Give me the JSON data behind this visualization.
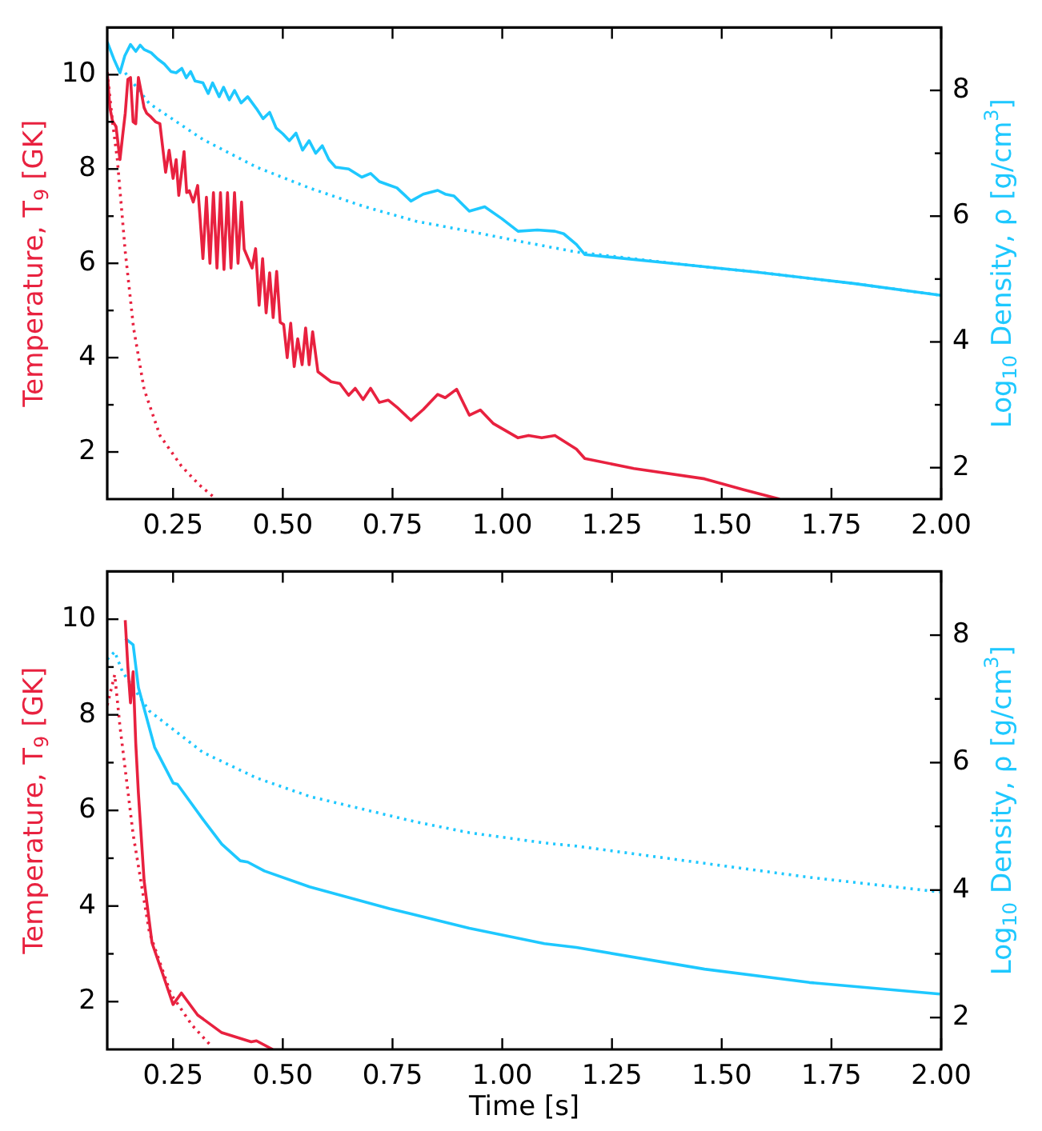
{
  "chart_data": [
    {
      "type": "line",
      "ylabel": "Temperature, T$_{9}$ [GK]",
      "y2label": "Log$_{10}$ Density, ρ [g/cm$^{3}$]",
      "marker": "none",
      "grid": false,
      "legend": false,
      "xlim": [
        0.1,
        2.0
      ],
      "xticks": [
        {
          "value": 0.25,
          "label": "0.25"
        },
        {
          "value": 0.5,
          "label": "0.50"
        },
        {
          "value": 0.75,
          "label": "0.75"
        },
        {
          "value": 1.0,
          "label": "1.00"
        },
        {
          "value": 1.25,
          "label": "1.25"
        },
        {
          "value": 1.5,
          "label": "1.50"
        },
        {
          "value": 1.75,
          "label": "1.75"
        },
        {
          "value": 2.0,
          "label": "2.00"
        }
      ],
      "ylim": [
        1,
        11
      ],
      "yticks": [
        2,
        {
          "value": 3,
          "label": null
        },
        4,
        {
          "value": 5,
          "label": null
        },
        6,
        {
          "value": 7,
          "label": null
        },
        8,
        {
          "value": 9,
          "label": null
        },
        10
      ],
      "y2lim": [
        1.5,
        9
      ],
      "y2ticks": [
        2,
        {
          "value": 3,
          "label": null
        },
        4,
        {
          "value": 5,
          "label": null
        },
        6,
        {
          "value": 7,
          "label": null
        },
        8
      ],
      "series": [
        {
          "color": "#e8213f",
          "line_style": "solid",
          "x": [
            0.1,
            0.106,
            0.112,
            0.12,
            0.129,
            0.135,
            0.141,
            0.147,
            0.153,
            0.159,
            0.165,
            0.171,
            0.178,
            0.184,
            0.19,
            0.2,
            0.21,
            0.22,
            0.233,
            0.241,
            0.25,
            0.257,
            0.263,
            0.269,
            0.275,
            0.281,
            0.287,
            0.296,
            0.306,
            0.312,
            0.318,
            0.326,
            0.334,
            0.342,
            0.35,
            0.358,
            0.366,
            0.374,
            0.382,
            0.39,
            0.398,
            0.406,
            0.412,
            0.43,
            0.438,
            0.446,
            0.454,
            0.462,
            0.47,
            0.478,
            0.486,
            0.494,
            0.502,
            0.51,
            0.518,
            0.526,
            0.534,
            0.544,
            0.552,
            0.56,
            0.568,
            0.58,
            0.61,
            0.63,
            0.65,
            0.665,
            0.683,
            0.7,
            0.72,
            0.74,
            0.76,
            0.792,
            0.82,
            0.853,
            0.87,
            0.896,
            0.925,
            0.95,
            0.98,
            1.036,
            1.06,
            1.09,
            1.12,
            1.169,
            1.188,
            1.3,
            1.461,
            1.55,
            1.632
          ],
          "values": [
            10.05,
            9.3,
            9.02,
            8.9,
            8.2,
            8.7,
            9.18,
            9.9,
            9.94,
            9.0,
            8.96,
            9.94,
            9.6,
            9.3,
            9.18,
            9.1,
            9.0,
            8.96,
            7.93,
            8.4,
            7.8,
            8.2,
            7.44,
            7.9,
            8.37,
            7.5,
            7.54,
            7.3,
            7.65,
            6.9,
            6.1,
            7.4,
            6.0,
            7.5,
            5.9,
            7.5,
            5.87,
            7.5,
            5.9,
            7.5,
            6.0,
            7.3,
            6.3,
            5.9,
            6.31,
            5.11,
            6.1,
            4.95,
            5.8,
            4.85,
            5.83,
            4.75,
            4.7,
            4.0,
            4.73,
            3.81,
            4.4,
            3.85,
            4.63,
            3.85,
            4.55,
            3.7,
            3.49,
            3.45,
            3.2,
            3.35,
            3.11,
            3.35,
            3.05,
            3.1,
            2.95,
            2.67,
            2.9,
            3.22,
            3.15,
            3.33,
            2.78,
            2.89,
            2.6,
            2.3,
            2.35,
            2.3,
            2.35,
            2.06,
            1.86,
            1.65,
            1.43,
            1.2,
            1.0
          ]
        },
        {
          "color": "#e8213f",
          "line_style": "dotted",
          "x": [
            0.1,
            0.112,
            0.123,
            0.141,
            0.16,
            0.184,
            0.22,
            0.269,
            0.31,
            0.348
          ],
          "values": [
            10.05,
            9.0,
            8.2,
            6.25,
            4.63,
            3.33,
            2.35,
            1.7,
            1.3,
            1.0
          ]
        },
        {
          "color": "#1ec8ff",
          "axis": "y2",
          "line_style": "solid",
          "x": [
            0.1,
            0.115,
            0.129,
            0.14,
            0.153,
            0.165,
            0.175,
            0.184,
            0.2,
            0.215,
            0.23,
            0.245,
            0.257,
            0.27,
            0.28,
            0.29,
            0.3,
            0.318,
            0.33,
            0.34,
            0.355,
            0.365,
            0.378,
            0.39,
            0.405,
            0.42,
            0.44,
            0.455,
            0.47,
            0.485,
            0.5,
            0.515,
            0.53,
            0.545,
            0.56,
            0.575,
            0.59,
            0.605,
            0.62,
            0.65,
            0.68,
            0.7,
            0.72,
            0.74,
            0.76,
            0.792,
            0.82,
            0.853,
            0.87,
            0.89,
            0.925,
            0.96,
            0.999,
            1.036,
            1.08,
            1.12,
            1.14,
            1.169,
            1.188,
            1.4,
            1.58,
            1.8,
            2.0
          ],
          "values": [
            8.77,
            8.5,
            8.28,
            8.55,
            8.73,
            8.62,
            8.72,
            8.65,
            8.6,
            8.5,
            8.42,
            8.3,
            8.28,
            8.35,
            8.2,
            8.3,
            8.15,
            8.12,
            7.95,
            8.12,
            7.9,
            8.05,
            7.85,
            8.0,
            7.8,
            7.9,
            7.71,
            7.55,
            7.65,
            7.4,
            7.31,
            7.2,
            7.32,
            7.05,
            7.2,
            7.0,
            7.12,
            6.9,
            6.78,
            6.75,
            6.62,
            6.68,
            6.55,
            6.5,
            6.45,
            6.24,
            6.35,
            6.41,
            6.35,
            6.32,
            6.08,
            6.15,
            5.96,
            5.76,
            5.78,
            5.76,
            5.72,
            5.55,
            5.39,
            5.24,
            5.11,
            4.93,
            4.74
          ]
        },
        {
          "color": "#1ec8ff",
          "axis": "y2",
          "line_style": "dotted",
          "x": [
            0.141,
            0.196,
            0.318,
            0.44,
            0.56,
            0.682,
            0.803,
            0.925,
            1.047,
            1.169,
            1.4,
            1.58,
            1.8,
            2.0
          ],
          "values": [
            8.28,
            7.79,
            7.22,
            6.78,
            6.45,
            6.16,
            5.92,
            5.76,
            5.59,
            5.43,
            5.24,
            5.11,
            4.93,
            4.74
          ]
        }
      ]
    },
    {
      "type": "line",
      "xlabel": "Time [s]",
      "ylabel": "Temperature, T$_{9}$ [GK]",
      "y2label": "Log$_{10}$ Density, ρ [g/cm$^{3}$]",
      "marker": "none",
      "grid": false,
      "legend": false,
      "xlim": [
        0.1,
        2.0
      ],
      "xticks": [
        {
          "value": 0.25,
          "label": "0.25"
        },
        {
          "value": 0.5,
          "label": "0.50"
        },
        {
          "value": 0.75,
          "label": "0.75"
        },
        {
          "value": 1.0,
          "label": "1.00"
        },
        {
          "value": 1.25,
          "label": "1.25"
        },
        {
          "value": 1.5,
          "label": "1.50"
        },
        {
          "value": 1.75,
          "label": "1.75"
        },
        {
          "value": 2.0,
          "label": "2.00"
        }
      ],
      "ylim": [
        1,
        11
      ],
      "yticks": [
        2,
        {
          "value": 3,
          "label": null
        },
        4,
        {
          "value": 5,
          "label": null
        },
        6,
        {
          "value": 7,
          "label": null
        },
        8,
        {
          "value": 9,
          "label": null
        },
        10
      ],
      "y2lim": [
        1.5,
        9
      ],
      "y2ticks": [
        2,
        {
          "value": 3,
          "label": null
        },
        4,
        {
          "value": 5,
          "label": null
        },
        6,
        {
          "value": 7,
          "label": null
        },
        8
      ],
      "series": [
        {
          "color": "#e8213f",
          "line_style": "solid",
          "x": [
            0.141,
            0.147,
            0.153,
            0.159,
            0.165,
            0.171,
            0.184,
            0.202,
            0.226,
            0.25,
            0.269,
            0.306,
            0.361,
            0.428,
            0.44,
            0.477
          ],
          "values": [
            9.98,
            9.0,
            8.25,
            8.9,
            7.4,
            6.36,
            4.53,
            3.23,
            2.59,
            1.94,
            2.18,
            1.72,
            1.35,
            1.16,
            1.18,
            1.0
          ]
        },
        {
          "color": "#e8213f",
          "line_style": "dotted",
          "x": [
            0.1,
            0.117,
            0.129,
            0.159,
            0.196,
            0.245,
            0.293,
            0.336
          ],
          "values": [
            8.2,
            8.84,
            7.76,
            5.5,
            3.45,
            2.16,
            1.51,
            1.08
          ]
        },
        {
          "color": "#1ec8ff",
          "axis": "y2",
          "line_style": "solid",
          "x": [
            0.141,
            0.159,
            0.171,
            0.208,
            0.25,
            0.26,
            0.318,
            0.361,
            0.403,
            0.42,
            0.458,
            0.561,
            0.743,
            0.925,
            1.096,
            1.169,
            1.461,
            1.7,
            1.997
          ],
          "values": [
            7.95,
            7.85,
            7.18,
            6.24,
            5.68,
            5.66,
            5.11,
            4.72,
            4.46,
            4.44,
            4.3,
            4.05,
            3.71,
            3.4,
            3.16,
            3.1,
            2.76,
            2.55,
            2.37
          ]
        },
        {
          "color": "#1ec8ff",
          "axis": "y2",
          "line_style": "dotted",
          "x": [
            0.1,
            0.117,
            0.135,
            0.196,
            0.318,
            0.44,
            0.561,
            0.682,
            0.803,
            0.925,
            1.096,
            1.169,
            1.461,
            1.7,
            1.997
          ],
          "values": [
            7.62,
            7.74,
            7.42,
            6.81,
            6.16,
            5.76,
            5.47,
            5.27,
            5.07,
            4.9,
            4.74,
            4.69,
            4.42,
            4.2,
            3.97
          ]
        }
      ]
    }
  ]
}
